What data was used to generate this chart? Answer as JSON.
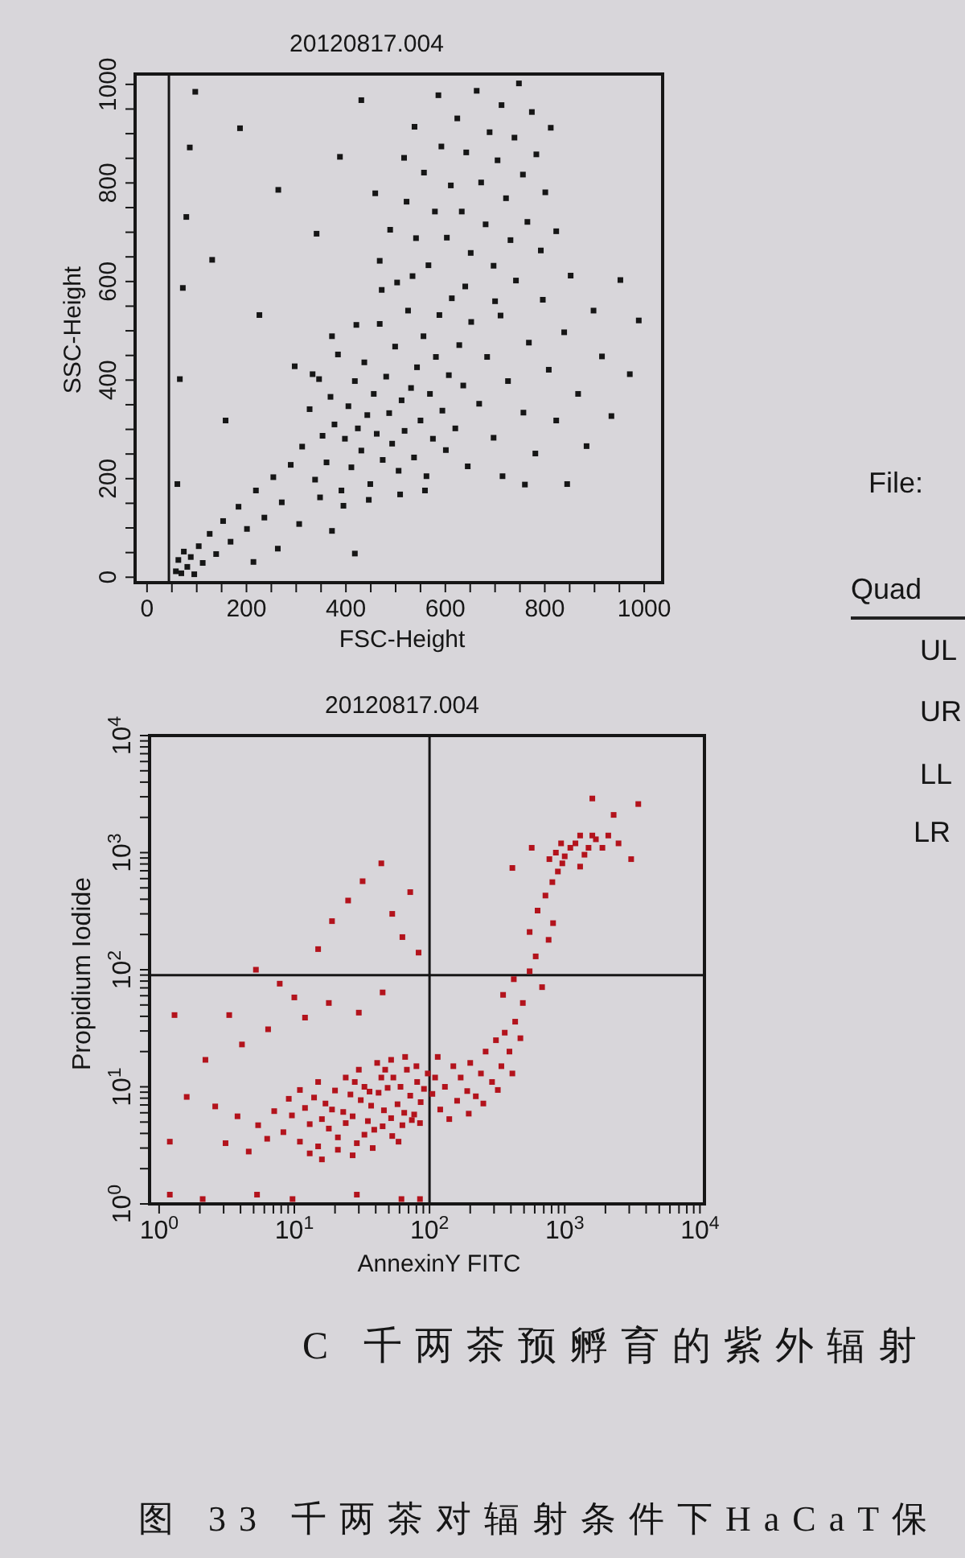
{
  "chart_data": [
    {
      "type": "scatter",
      "title": "20120817.004",
      "xlabel": "FSC-Height",
      "ylabel": "SSC-Height",
      "x": [
        312,
        327,
        338,
        346,
        353,
        361,
        369,
        377,
        384,
        391,
        398,
        405,
        411,
        418,
        424,
        431,
        437,
        443,
        449,
        456,
        462,
        468,
        474,
        481,
        487,
        493,
        499,
        506,
        512,
        518,
        525,
        531,
        537,
        543,
        550,
        556,
        562,
        569,
        575,
        581,
        588,
        594,
        601,
        607,
        613,
        620,
        628,
        636,
        645,
        652,
        333,
        348,
        372,
        395,
        421,
        446,
        472,
        509,
        534,
        559,
        468,
        489,
        503,
        522,
        541,
        557,
        566,
        579,
        592,
        603,
        611,
        624,
        633,
        642,
        651,
        663,
        672,
        681,
        689,
        697,
        705,
        713,
        722,
        731,
        739,
        748,
        756,
        765,
        774,
        783,
        792,
        801,
        812,
        823,
        538,
        586,
        517,
        459,
        640,
        700,
        668,
        684,
        697,
        711,
        726,
        742,
        757,
        768,
        781,
        796,
        808,
        823,
        839,
        852,
        867,
        884,
        898,
        915,
        934,
        952,
        971,
        989,
        760,
        715,
        845,
        58,
        63,
        69,
        74,
        81,
        88,
        95,
        104,
        112,
        126,
        139,
        153,
        168,
        184,
        201,
        219,
        236,
        254,
        271,
        289,
        306,
        263,
        214,
        372,
        418,
        61,
        66,
        72,
        79,
        86,
        97,
        131,
        158,
        187,
        226,
        264,
        297,
        341,
        388,
        431
      ],
      "values": [
        265,
        341,
        198,
        402,
        287,
        233,
        366,
        310,
        452,
        176,
        281,
        347,
        223,
        398,
        302,
        257,
        436,
        329,
        189,
        372,
        291,
        514,
        238,
        407,
        333,
        271,
        468,
        216,
        359,
        297,
        541,
        384,
        243,
        426,
        318,
        489,
        205,
        372,
        281,
        447,
        532,
        338,
        258,
        410,
        566,
        302,
        471,
        389,
        225,
        518,
        412,
        162,
        489,
        145,
        512,
        157,
        583,
        168,
        611,
        176,
        642,
        705,
        598,
        762,
        688,
        821,
        633,
        742,
        874,
        689,
        795,
        931,
        742,
        862,
        658,
        987,
        801,
        716,
        903,
        632,
        846,
        958,
        769,
        684,
        892,
        1002,
        817,
        721,
        944,
        858,
        663,
        781,
        912,
        702,
        914,
        978,
        851,
        779,
        590,
        560,
        352,
        447,
        283,
        531,
        398,
        602,
        334,
        476,
        251,
        563,
        421,
        318,
        497,
        612,
        372,
        266,
        541,
        448,
        327,
        603,
        412,
        521,
        188,
        205,
        189,
        12,
        35,
        8,
        52,
        21,
        41,
        6,
        63,
        29,
        88,
        47,
        114,
        72,
        143,
        98,
        176,
        121,
        203,
        152,
        228,
        108,
        58,
        31,
        94,
        48,
        189,
        402,
        587,
        731,
        872,
        985,
        644,
        318,
        911,
        532,
        786,
        428,
        697,
        853,
        968
      ],
      "color": "#161616",
      "marker": "square",
      "xlim": [
        -24,
        1037
      ],
      "ylim": [
        -11,
        1021
      ],
      "xticks": [
        0,
        {
          "value": 50,
          "label": null
        },
        {
          "value": 100,
          "label": null
        },
        {
          "value": 150,
          "label": null
        },
        200,
        {
          "value": 250,
          "label": null
        },
        {
          "value": 300,
          "label": null
        },
        {
          "value": 350,
          "label": null
        },
        400,
        {
          "value": 450,
          "label": null
        },
        {
          "value": 500,
          "label": null
        },
        {
          "value": 550,
          "label": null
        },
        600,
        {
          "value": 650,
          "label": null
        },
        {
          "value": 700,
          "label": null
        },
        {
          "value": 750,
          "label": null
        },
        800,
        {
          "value": 850,
          "label": null
        },
        {
          "value": 900,
          "label": null
        },
        {
          "value": 950,
          "label": null
        },
        1000
      ],
      "yticks": [
        0,
        {
          "value": 50,
          "label": null
        },
        {
          "value": 100,
          "label": null
        },
        {
          "value": 150,
          "label": null
        },
        200,
        {
          "value": 250,
          "label": null
        },
        {
          "value": 300,
          "label": null
        },
        {
          "value": 350,
          "label": null
        },
        400,
        {
          "value": 450,
          "label": null
        },
        {
          "value": 500,
          "label": null
        },
        {
          "value": 550,
          "label": null
        },
        600,
        {
          "value": 650,
          "label": null
        },
        {
          "value": 700,
          "label": null
        },
        {
          "value": 750,
          "label": null
        },
        800,
        {
          "value": 850,
          "label": null
        },
        {
          "value": 900,
          "label": null
        },
        {
          "value": 950,
          "label": null
        },
        1000
      ],
      "ref_lines": [
        {
          "axis": "x",
          "value": 44
        }
      ]
    },
    {
      "type": "scatter",
      "title": "20120817.004",
      "xlabel": "AnnexinY FITC",
      "ylabel": "Propidium Iodide",
      "x": [
        8.3,
        9.6,
        11,
        12,
        13,
        14,
        15,
        16,
        17,
        18,
        20,
        21,
        23,
        24,
        26,
        27,
        29,
        31,
        33,
        35,
        37,
        39,
        42,
        44,
        46,
        49,
        52,
        54,
        58,
        61,
        65,
        68,
        72,
        77,
        81,
        86,
        91,
        97,
        7.1,
        6.3,
        9.1,
        11,
        13,
        16,
        21,
        27,
        33,
        38,
        45,
        53,
        63,
        74,
        85,
        15,
        24,
        30,
        41,
        52,
        66,
        80,
        5.4,
        4.6,
        3.8,
        3.1,
        2.6,
        59,
        47,
        36,
        28,
        19,
        105,
        110,
        120,
        130,
        150,
        160,
        170,
        190,
        200,
        220,
        240,
        260,
        290,
        310,
        340,
        360,
        390,
        430,
        470,
        115,
        140,
        195,
        250,
        320,
        410,
        350,
        420,
        490,
        550,
        610,
        680,
        760,
        820,
        550,
        630,
        720,
        810,
        890,
        960,
        1000,
        1100,
        1200,
        1300,
        1500,
        1600,
        1700,
        1900,
        2100,
        860,
        770,
        940,
        1300,
        1400,
        2500,
        3100,
        2300,
        3500,
        1600,
        570,
        410,
        5.2,
        7.8,
        10,
        15,
        19,
        25,
        32,
        44,
        53,
        63,
        72,
        83,
        3.3,
        4.1,
        6.4,
        12,
        18,
        30,
        45,
        2.2,
        1.6,
        1.2,
        2.1,
        5.3,
        9.7,
        29,
        62,
        1.3,
        1.2,
        85
      ],
      "values": [
        4.1,
        5.7,
        3.4,
        6.6,
        4.8,
        8.1,
        3.1,
        5.3,
        7.2,
        4.4,
        9.3,
        3.7,
        6.1,
        4.9,
        8.6,
        5.6,
        3.3,
        7.7,
        10,
        5.1,
        6.9,
        4.3,
        8.9,
        12,
        6.3,
        9.8,
        5.4,
        12,
        7.1,
        10,
        6,
        14,
        8.4,
        5.8,
        11,
        7.4,
        9.6,
        13,
        6.2,
        3.6,
        7.9,
        9.4,
        2.7,
        2.4,
        2.9,
        2.6,
        3.9,
        3,
        4.6,
        3.8,
        4.7,
        5.2,
        4.9,
        11,
        12,
        14,
        16,
        17,
        18,
        15,
        4.7,
        2.8,
        5.6,
        3.3,
        6.8,
        3.4,
        14,
        9.1,
        11,
        6.4,
        8.7,
        12,
        6.4,
        10,
        15,
        7.6,
        12,
        9.2,
        16,
        8.3,
        13,
        20,
        11,
        25,
        15,
        29,
        20,
        36,
        26,
        18,
        5.3,
        5.9,
        7.2,
        9.4,
        13,
        61,
        83,
        52,
        97,
        130,
        71,
        180,
        250,
        210,
        320,
        430,
        560,
        690,
        810,
        930,
        1100,
        1200,
        1400,
        1100,
        1400,
        1300,
        1100,
        1400,
        1000,
        880,
        1200,
        760,
        960,
        1200,
        880,
        2100,
        2600,
        2900,
        1100,
        740,
        100,
        76,
        58,
        150,
        260,
        390,
        570,
        810,
        300,
        190,
        460,
        140,
        41,
        23,
        31,
        39,
        52,
        43,
        64,
        17,
        8.2,
        3.4,
        1.1,
        1.2,
        1.1,
        1.2,
        1.1,
        41,
        1.2,
        1.1
      ],
      "color": "#b3131c",
      "marker": "square",
      "log": "xy",
      "xlim": [
        0.85,
        10800
      ],
      "ylim": [
        1,
        10000
      ],
      "xticks": [
        {
          "value": 1,
          "label": "10$^{0}$"
        },
        {
          "value": 2,
          "label": null
        },
        {
          "value": 3,
          "label": null
        },
        {
          "value": 4,
          "label": null
        },
        {
          "value": 5,
          "label": null
        },
        {
          "value": 6,
          "label": null
        },
        {
          "value": 7,
          "label": null
        },
        {
          "value": 8,
          "label": null
        },
        {
          "value": 9,
          "label": null
        },
        {
          "value": 10,
          "label": "10$^{1}$"
        },
        {
          "value": 20,
          "label": null
        },
        {
          "value": 30,
          "label": null
        },
        {
          "value": 40,
          "label": null
        },
        {
          "value": 50,
          "label": null
        },
        {
          "value": 60,
          "label": null
        },
        {
          "value": 70,
          "label": null
        },
        {
          "value": 80,
          "label": null
        },
        {
          "value": 90,
          "label": null
        },
        {
          "value": 100,
          "label": "10$^{2}$"
        },
        {
          "value": 200,
          "label": null
        },
        {
          "value": 300,
          "label": null
        },
        {
          "value": 400,
          "label": null
        },
        {
          "value": 500,
          "label": null
        },
        {
          "value": 600,
          "label": null
        },
        {
          "value": 700,
          "label": null
        },
        {
          "value": 800,
          "label": null
        },
        {
          "value": 900,
          "label": null
        },
        {
          "value": 1000,
          "label": "10$^{3}$"
        },
        {
          "value": 2000,
          "label": null
        },
        {
          "value": 3000,
          "label": null
        },
        {
          "value": 4000,
          "label": null
        },
        {
          "value": 5000,
          "label": null
        },
        {
          "value": 6000,
          "label": null
        },
        {
          "value": 7000,
          "label": null
        },
        {
          "value": 8000,
          "label": null
        },
        {
          "value": 9000,
          "label": null
        },
        {
          "value": 10000,
          "label": "10$^{4}$"
        }
      ],
      "yticks": [
        {
          "value": 1,
          "label": "10$^{0}$"
        },
        {
          "value": 2,
          "label": null
        },
        {
          "value": 3,
          "label": null
        },
        {
          "value": 4,
          "label": null
        },
        {
          "value": 5,
          "label": null
        },
        {
          "value": 6,
          "label": null
        },
        {
          "value": 7,
          "label": null
        },
        {
          "value": 8,
          "label": null
        },
        {
          "value": 9,
          "label": null
        },
        {
          "value": 10,
          "label": "10$^{1}$"
        },
        {
          "value": 20,
          "label": null
        },
        {
          "value": 30,
          "label": null
        },
        {
          "value": 40,
          "label": null
        },
        {
          "value": 50,
          "label": null
        },
        {
          "value": 60,
          "label": null
        },
        {
          "value": 70,
          "label": null
        },
        {
          "value": 80,
          "label": null
        },
        {
          "value": 90,
          "label": null
        },
        {
          "value": 100,
          "label": "10$^{2}$"
        },
        {
          "value": 200,
          "label": null
        },
        {
          "value": 300,
          "label": null
        },
        {
          "value": 400,
          "label": null
        },
        {
          "value": 500,
          "label": null
        },
        {
          "value": 600,
          "label": null
        },
        {
          "value": 700,
          "label": null
        },
        {
          "value": 800,
          "label": null
        },
        {
          "value": 900,
          "label": null
        },
        {
          "value": 1000,
          "label": "10$^{3}$"
        },
        {
          "value": 2000,
          "label": null
        },
        {
          "value": 3000,
          "label": null
        },
        {
          "value": 4000,
          "label": null
        },
        {
          "value": 5000,
          "label": null
        },
        {
          "value": 6000,
          "label": null
        },
        {
          "value": 7000,
          "label": null
        },
        {
          "value": 8000,
          "label": null
        },
        {
          "value": 9000,
          "label": null
        },
        {
          "value": 10000,
          "label": "10$^{4}$"
        }
      ],
      "ref_lines": [
        {
          "axis": "x",
          "value": 100
        },
        {
          "axis": "y",
          "value": 90
        }
      ],
      "annotations": [
        "C 千两茶预孵育的紫外辐射",
        "图 33 千两茶对辐射条件下HaCaT保"
      ]
    },
    {
      "type": "other",
      "annotations": [
        "File:",
        "Quad",
        "UL",
        "UR",
        "LL",
        "LR"
      ]
    }
  ]
}
